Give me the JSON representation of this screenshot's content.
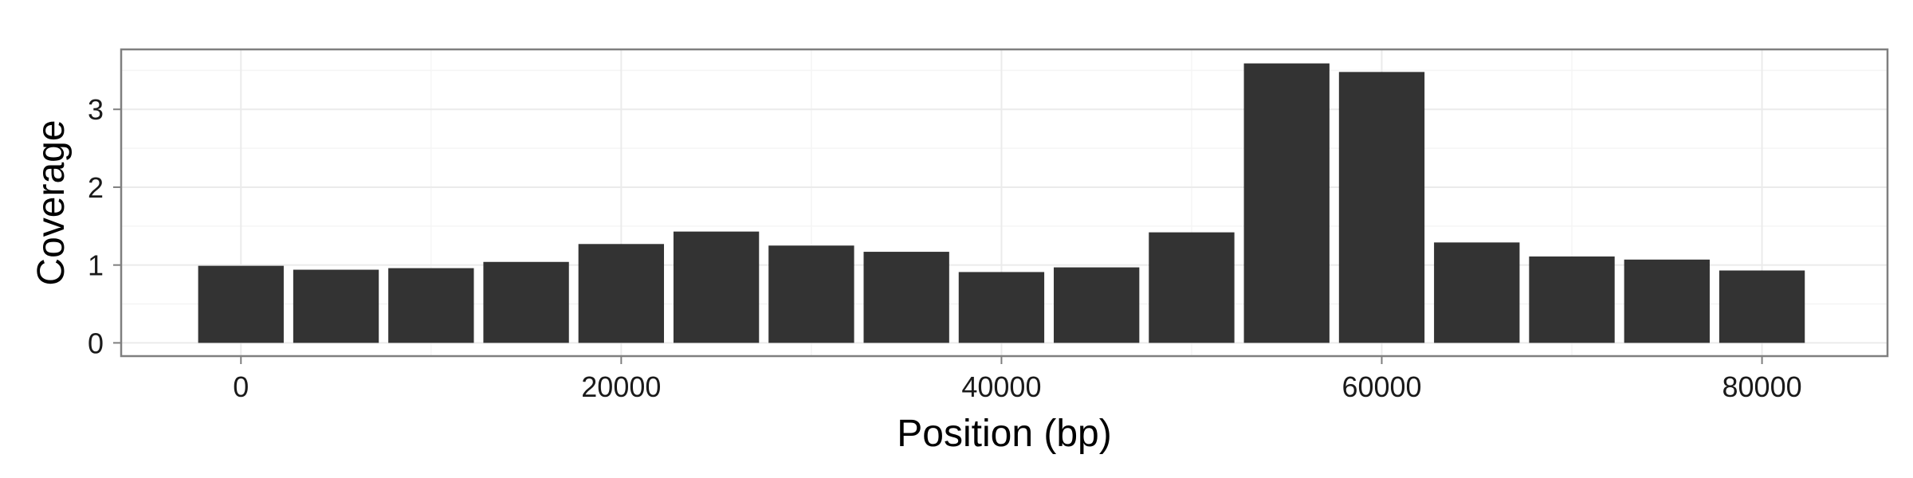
{
  "chart_data": {
    "type": "bar",
    "title": "",
    "xlabel": "Position (bp)",
    "ylabel": "Coverage",
    "x": [
      0,
      5000,
      10000,
      15000,
      20000,
      25000,
      30000,
      35000,
      40000,
      45000,
      50000,
      55000,
      60000,
      65000,
      70000,
      75000,
      80000
    ],
    "values": [
      0.99,
      0.94,
      0.96,
      1.04,
      1.27,
      1.43,
      1.25,
      1.17,
      0.91,
      0.97,
      1.42,
      3.59,
      3.48,
      1.29,
      1.11,
      1.07,
      0.93
    ],
    "bin_width": 5000,
    "xlim": [
      -6300,
      86600
    ],
    "ylim": [
      -0.17,
      3.77
    ],
    "xticks": [
      0,
      20000,
      40000,
      60000,
      80000
    ],
    "xtick_labels": [
      "0",
      "20000",
      "40000",
      "60000",
      "80000"
    ],
    "yticks": [
      0,
      1,
      2,
      3
    ],
    "ytick_labels": [
      "0",
      "1",
      "2",
      "3"
    ],
    "grid": true,
    "legend": "none",
    "colors": {
      "bar": "#333333",
      "panel_border": "#7f7f7f",
      "grid_major": "#ebebeb",
      "grid_minor": "#f5f5f5",
      "tick": "#7f7f7f"
    }
  }
}
